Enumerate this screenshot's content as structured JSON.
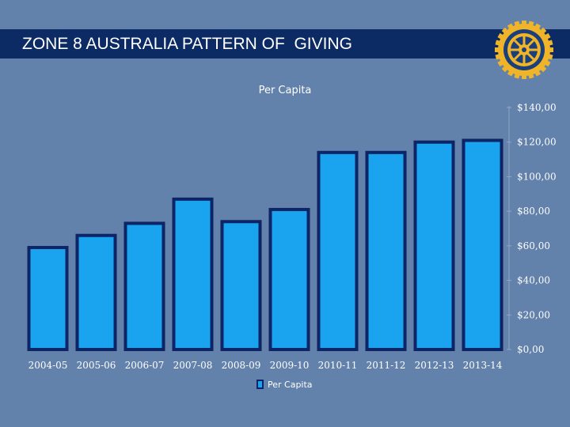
{
  "slide": {
    "title": "ZONE 8 AUSTRALIA PATTERN OF  GIVING"
  },
  "colors": {
    "background": "#6281ab",
    "title_bar": "#0c2a63",
    "bar_fill": "#1aa3ee",
    "bar_border": "#0d2466",
    "logo_gold": "#f0b429"
  },
  "logo": {
    "icon": "rotary-wheel-icon"
  },
  "chart_data": {
    "type": "bar",
    "title": "Per Capita",
    "categories": [
      "2004-05",
      "2005-06",
      "2006-07",
      "2007-08",
      "2008-09",
      "2009-10",
      "2010-11",
      "2011-12",
      "2012-13",
      "2013-14"
    ],
    "series": [
      {
        "name": "Per Capita",
        "values": [
          59,
          66,
          73,
          87,
          74,
          81,
          114,
          114,
          120,
          121
        ]
      }
    ],
    "ylim": [
      0,
      140
    ],
    "yticks": [
      0,
      20,
      40,
      60,
      80,
      100,
      120,
      140
    ],
    "ytick_labels": [
      "$0,00",
      "$20,00",
      "$40,00",
      "$60,00",
      "$80,00",
      "$100,00",
      "$120,00",
      "$140,00"
    ],
    "y_axis_side": "right",
    "grid": false,
    "legend": {
      "position": "bottom-center",
      "entries": [
        "Per Capita"
      ]
    }
  }
}
